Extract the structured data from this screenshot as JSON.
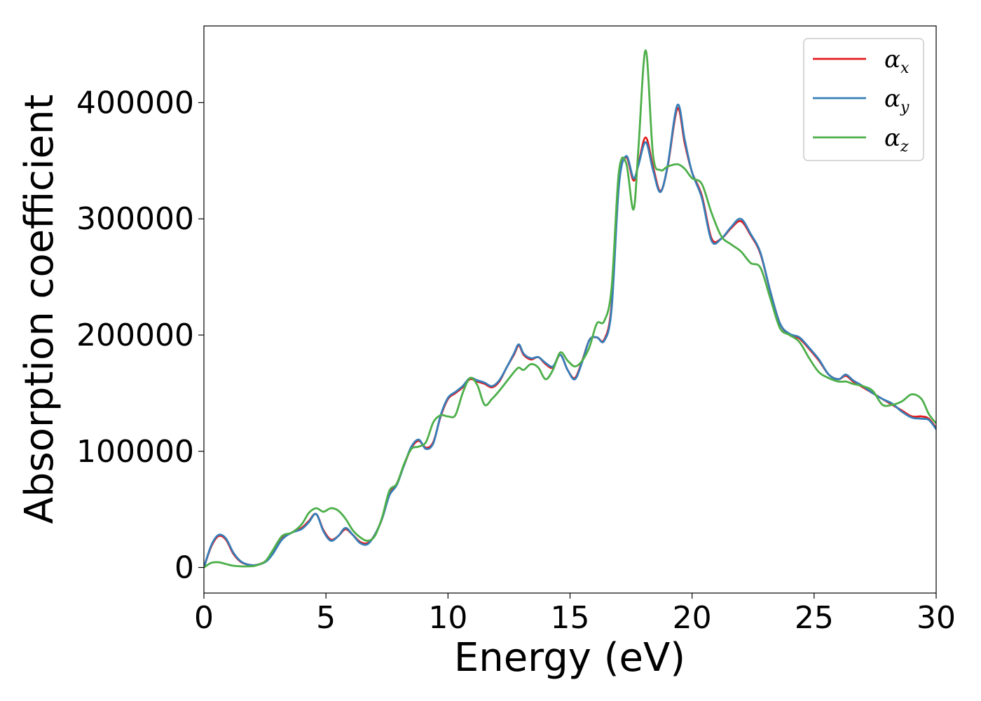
{
  "chart_data": {
    "type": "line",
    "xlabel": "Energy (eV)",
    "ylabel": "Absorption coefficient",
    "xlim": [
      0,
      30
    ],
    "ylim": [
      -22000,
      466000
    ],
    "xticks": [
      0,
      5,
      10,
      15,
      20,
      25,
      30
    ],
    "yticks": [
      0,
      100000,
      200000,
      300000,
      400000
    ],
    "grid": false,
    "legend_position": "top-right",
    "series": [
      {
        "name": "α",
        "subscript": "x",
        "color": "#e41a1c",
        "x": [
          0,
          0.3,
          0.6,
          0.9,
          1.2,
          1.5,
          1.8,
          2.1,
          2.5,
          2.8,
          3.2,
          3.6,
          4.0,
          4.3,
          4.6,
          4.9,
          5.2,
          5.5,
          5.8,
          6.1,
          6.4,
          6.7,
          7.0,
          7.3,
          7.6,
          7.9,
          8.2,
          8.5,
          8.8,
          9.1,
          9.4,
          9.7,
          10.0,
          10.3,
          10.6,
          10.9,
          11.2,
          11.5,
          11.8,
          12.1,
          12.4,
          12.7,
          12.9,
          13.1,
          13.4,
          13.7,
          14.0,
          14.3,
          14.6,
          14.9,
          15.2,
          15.5,
          15.8,
          16.1,
          16.4,
          16.7,
          17.0,
          17.3,
          17.6,
          17.8,
          18.1,
          18.4,
          18.7,
          19.0,
          19.4,
          19.7,
          20.0,
          20.4,
          20.8,
          21.2,
          21.6,
          22.0,
          22.4,
          22.8,
          23.2,
          23.6,
          24.0,
          24.4,
          24.8,
          25.2,
          25.6,
          26.0,
          26.3,
          26.6,
          27.0,
          27.4,
          27.8,
          28.2,
          28.6,
          29.0,
          29.4,
          29.7,
          30.0
        ],
        "values": [
          0,
          18000,
          27000,
          24000,
          12000,
          5000,
          2500,
          2000,
          5000,
          12000,
          25000,
          30000,
          34000,
          40000,
          46000,
          32000,
          24000,
          27000,
          33000,
          28000,
          22000,
          21000,
          28000,
          42000,
          63000,
          72000,
          88000,
          103000,
          109000,
          103000,
          108000,
          130000,
          145000,
          150000,
          155000,
          162000,
          160000,
          158000,
          155000,
          160000,
          172000,
          183000,
          191000,
          183000,
          179000,
          181000,
          175000,
          172000,
          183000,
          170000,
          163000,
          178000,
          196000,
          198000,
          196000,
          225000,
          330000,
          353000,
          333000,
          347000,
          370000,
          345000,
          324000,
          345000,
          395000,
          365000,
          340000,
          320000,
          283000,
          283000,
          292000,
          298000,
          286000,
          270000,
          238000,
          210000,
          200000,
          197000,
          188000,
          178000,
          166000,
          162000,
          165000,
          160000,
          155000,
          150000,
          145000,
          140000,
          135000,
          130000,
          130000,
          128000,
          120000
        ]
      },
      {
        "name": "α",
        "subscript": "y",
        "color": "#377eb8",
        "x": [
          0,
          0.3,
          0.6,
          0.9,
          1.2,
          1.5,
          1.8,
          2.1,
          2.5,
          2.8,
          3.2,
          3.6,
          4.0,
          4.3,
          4.6,
          4.9,
          5.2,
          5.5,
          5.8,
          6.1,
          6.4,
          6.7,
          7.0,
          7.3,
          7.6,
          7.9,
          8.2,
          8.5,
          8.8,
          9.1,
          9.4,
          9.7,
          10.0,
          10.3,
          10.6,
          10.9,
          11.2,
          11.5,
          11.8,
          12.1,
          12.4,
          12.7,
          12.9,
          13.1,
          13.4,
          13.7,
          14.0,
          14.3,
          14.6,
          14.9,
          15.2,
          15.5,
          15.8,
          16.1,
          16.4,
          16.7,
          17.0,
          17.3,
          17.6,
          17.8,
          18.1,
          18.4,
          18.7,
          19.0,
          19.4,
          19.7,
          20.0,
          20.4,
          20.8,
          21.2,
          21.6,
          22.0,
          22.4,
          22.8,
          23.2,
          23.6,
          24.0,
          24.4,
          24.8,
          25.2,
          25.6,
          26.0,
          26.3,
          26.6,
          27.0,
          27.4,
          27.8,
          28.2,
          28.6,
          29.0,
          29.4,
          29.7,
          30.0
        ],
        "values": [
          0,
          19000,
          28000,
          25000,
          13000,
          5500,
          2500,
          2000,
          4500,
          11000,
          24000,
          30000,
          33000,
          39000,
          46000,
          31000,
          23000,
          27000,
          34000,
          28000,
          21000,
          20000,
          28000,
          42000,
          62000,
          71000,
          88000,
          104000,
          110000,
          102000,
          107000,
          131000,
          146000,
          151000,
          156000,
          163000,
          161000,
          159000,
          156000,
          161000,
          172000,
          184000,
          192000,
          184000,
          180000,
          181000,
          176000,
          173000,
          183000,
          170000,
          162000,
          177000,
          196000,
          198000,
          195000,
          222000,
          328000,
          354000,
          335000,
          346000,
          366000,
          342000,
          323000,
          346000,
          398000,
          368000,
          340000,
          318000,
          281000,
          283000,
          293000,
          300000,
          287000,
          271000,
          238000,
          210000,
          201000,
          198000,
          189000,
          179000,
          166000,
          162000,
          166000,
          161000,
          156000,
          150000,
          145000,
          141000,
          134000,
          129000,
          128000,
          127000,
          119000
        ]
      },
      {
        "name": "α",
        "subscript": "z",
        "color": "#4daf4a",
        "x": [
          0,
          0.3,
          0.6,
          0.9,
          1.2,
          1.5,
          1.8,
          2.1,
          2.5,
          2.8,
          3.2,
          3.6,
          4.0,
          4.3,
          4.6,
          4.9,
          5.2,
          5.5,
          5.8,
          6.1,
          6.4,
          6.7,
          7.0,
          7.3,
          7.6,
          7.9,
          8.2,
          8.5,
          8.8,
          9.1,
          9.4,
          9.7,
          10.0,
          10.3,
          10.6,
          10.9,
          11.2,
          11.5,
          11.8,
          12.1,
          12.4,
          12.7,
          12.9,
          13.1,
          13.4,
          13.7,
          14.0,
          14.3,
          14.6,
          14.9,
          15.2,
          15.5,
          15.8,
          16.1,
          16.4,
          16.7,
          17.0,
          17.3,
          17.6,
          17.8,
          18.1,
          18.4,
          18.7,
          19.0,
          19.4,
          19.7,
          20.0,
          20.4,
          20.8,
          21.2,
          21.6,
          22.0,
          22.4,
          22.8,
          23.2,
          23.6,
          24.0,
          24.4,
          24.8,
          25.2,
          25.6,
          26.0,
          26.3,
          26.6,
          27.0,
          27.4,
          27.8,
          28.2,
          28.6,
          29.0,
          29.4,
          29.7,
          30.0
        ],
        "values": [
          0,
          4000,
          4500,
          3000,
          1500,
          1000,
          1000,
          1500,
          5000,
          14000,
          27000,
          30000,
          37000,
          47000,
          51000,
          48000,
          51000,
          49000,
          42000,
          32000,
          26000,
          23000,
          27000,
          43000,
          66000,
          72000,
          89000,
          102000,
          104000,
          108000,
          125000,
          131000,
          130000,
          131000,
          150000,
          163000,
          157000,
          140000,
          145000,
          152000,
          160000,
          168000,
          172000,
          170000,
          175000,
          172000,
          162000,
          170000,
          185000,
          178000,
          173000,
          178000,
          190000,
          210000,
          212000,
          240000,
          340000,
          348000,
          308000,
          360000,
          445000,
          355000,
          342000,
          345000,
          347000,
          343000,
          335000,
          330000,
          305000,
          285000,
          278000,
          272000,
          262000,
          258000,
          232000,
          206000,
          200000,
          194000,
          180000,
          168000,
          163000,
          160000,
          160000,
          158000,
          156000,
          152000,
          140000,
          140000,
          143000,
          149000,
          145000,
          132000,
          124000
        ]
      }
    ]
  }
}
